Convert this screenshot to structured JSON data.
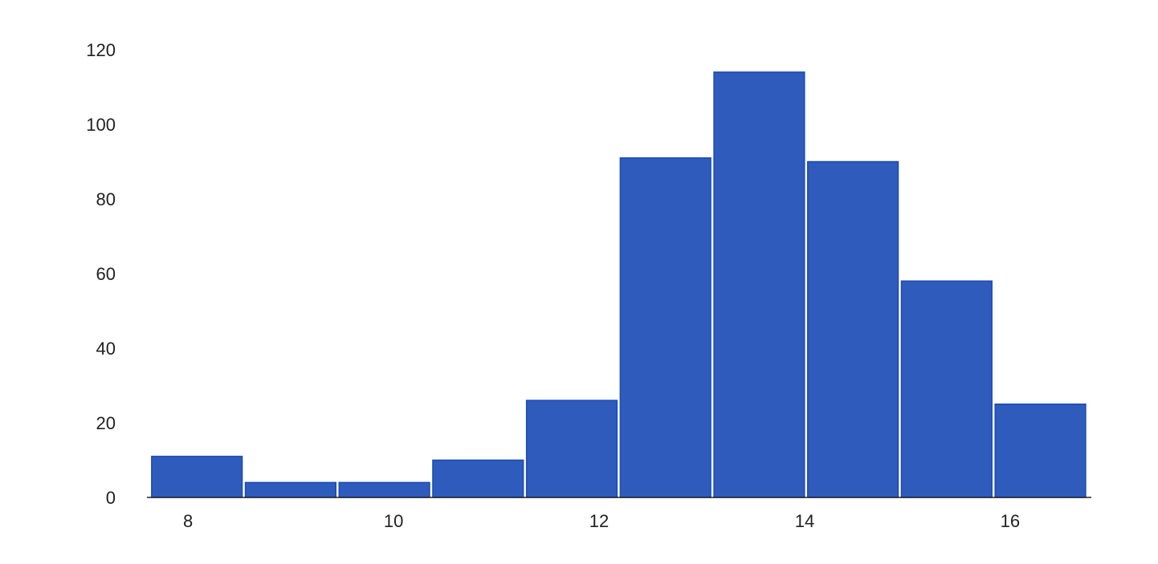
{
  "chart_data": {
    "type": "bar",
    "subtype": "histogram",
    "title": "",
    "xlabel": "",
    "ylabel": "",
    "bin_start": 7.63,
    "bin_width": 0.912,
    "values": [
      11,
      4,
      4,
      10,
      26,
      91,
      114,
      90,
      58,
      25
    ],
    "xlim": [
      7.6,
      16.79
    ],
    "ylim": [
      0,
      120
    ],
    "xticks": [
      8,
      10,
      12,
      14,
      16
    ],
    "yticks": [
      0,
      20,
      40,
      60,
      80,
      100,
      120
    ],
    "grid": false,
    "colors": {
      "bar": "#2f5bbd",
      "bar_edge": "#1a4ab5",
      "axis": "#222222"
    }
  }
}
